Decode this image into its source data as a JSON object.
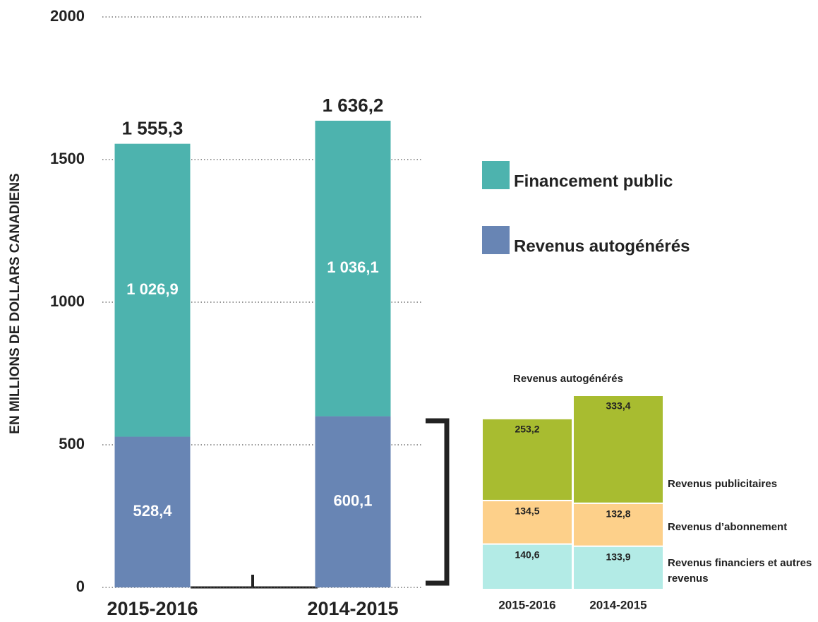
{
  "chart_data": [
    {
      "type": "bar",
      "stacked": true,
      "y_label": "EN MILLIONS DE DOLLARS CANADIENS",
      "categories": [
        "2015-2016",
        "2014-2015"
      ],
      "series": [
        {
          "name": "Revenus autogénérés",
          "color": "#6885b4",
          "values": [
            528.4,
            600.1
          ],
          "value_labels": [
            "528,4",
            "600,1"
          ]
        },
        {
          "name": "Financement public",
          "color": "#4db3ae",
          "values": [
            1026.9,
            1036.1
          ],
          "value_labels": [
            "1 026,9",
            "1 036,1"
          ]
        }
      ],
      "totals": [
        1555.3,
        1636.2
      ],
      "total_labels": [
        "1 555,3",
        "1 636,2"
      ],
      "ylim": [
        0,
        2000
      ],
      "yticks": [
        0,
        500,
        1000,
        1500,
        2000
      ],
      "grid": true
    },
    {
      "type": "bar",
      "stacked": true,
      "title": "Revenus autogénérés",
      "categories": [
        "2015-2016",
        "2014-2015"
      ],
      "series": [
        {
          "name": "Revenus financiers et autres revenus",
          "color": "#b3ebe6",
          "values": [
            140.6,
            133.9
          ],
          "value_labels": [
            "140,6",
            "133,9"
          ]
        },
        {
          "name": "Revenus d’abonnement",
          "color": "#fdd08a",
          "values": [
            134.5,
            132.8
          ],
          "value_labels": [
            "134,5",
            "132,8"
          ]
        },
        {
          "name": "Revenus publicitaires",
          "color": "#a8bc30",
          "values": [
            253.2,
            333.4
          ],
          "value_labels": [
            "253,2",
            "333,4"
          ]
        }
      ]
    }
  ]
}
